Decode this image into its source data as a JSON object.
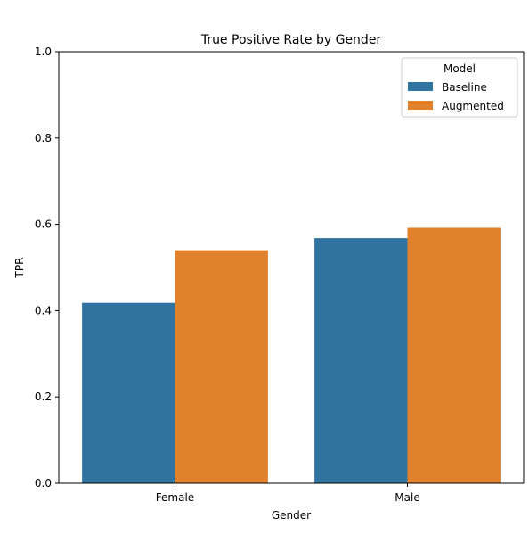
{
  "chart_data": {
    "type": "bar",
    "title": "True Positive Rate by Gender",
    "xlabel": "Gender",
    "ylabel": "TPR",
    "categories": [
      "Female",
      "Male"
    ],
    "ylim": [
      0,
      1.0
    ],
    "yticks": [
      "0.0",
      "0.2",
      "0.4",
      "0.6",
      "0.8",
      "1.0"
    ],
    "legend": {
      "title": "Model",
      "position": "top-right"
    },
    "series": [
      {
        "name": "Baseline",
        "color": "#3274a1",
        "values": [
          0.418,
          0.568
        ]
      },
      {
        "name": "Augmented",
        "color": "#e1812c",
        "values": [
          0.54,
          0.592
        ]
      }
    ],
    "grid": false
  }
}
